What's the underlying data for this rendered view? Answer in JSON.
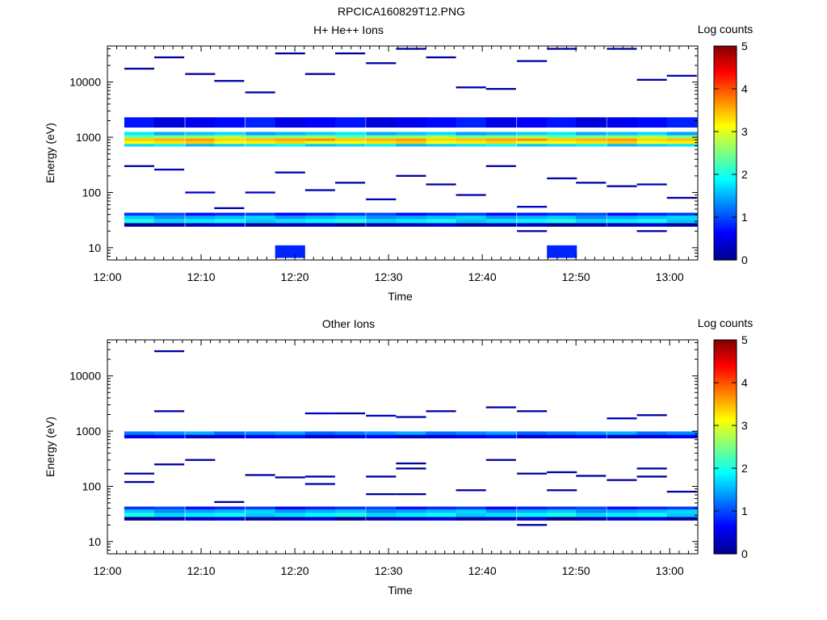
{
  "title": "RPCICA160829T12.PNG",
  "colormap": [
    "#00008f",
    "#0000ff",
    "#0080ff",
    "#00ffff",
    "#80ff80",
    "#ffff00",
    "#ff8000",
    "#ff0000",
    "#800000"
  ],
  "chart_data": [
    {
      "type": "heatmap",
      "title": "H+ He++ Ions",
      "xlabel": "Time",
      "ylabel": "Energy (eV)",
      "x_range": [
        "12:00",
        "13:03"
      ],
      "y_range": [
        6,
        45000
      ],
      "y_scale": "log",
      "x_ticks": [
        "12:00",
        "12:10",
        "12:20",
        "12:30",
        "12:40",
        "12:50",
        "13:00"
      ],
      "y_ticks": [
        "10",
        "100",
        "1000",
        "10000"
      ],
      "colorbar": {
        "label": "Log counts",
        "range": [
          0,
          5
        ],
        "ticks": [
          "0",
          "1",
          "2",
          "3",
          "4",
          "5"
        ]
      },
      "time_bins_start_min": [
        1.8,
        5.0,
        8.3,
        11.4,
        14.7,
        17.9,
        21.1,
        24.3,
        27.6,
        30.8,
        34.0,
        37.2,
        40.4,
        43.7,
        46.9,
        50.0,
        53.3,
        56.5,
        59.7
      ],
      "bands": [
        {
          "e_lo": 24,
          "e_hi": 28,
          "log_counts": 0.2
        },
        {
          "e_lo": 28,
          "e_hi": 33,
          "log_counts": 1.8
        },
        {
          "e_lo": 33,
          "e_hi": 38,
          "log_counts": 1.5
        },
        {
          "e_lo": 38,
          "e_hi": 43,
          "log_counts": 0.8
        },
        {
          "e_lo": 680,
          "e_hi": 760,
          "log_counts": 1.7
        },
        {
          "e_lo": 760,
          "e_hi": 860,
          "log_counts": 3.2
        },
        {
          "e_lo": 860,
          "e_hi": 960,
          "log_counts": 3.5
        },
        {
          "e_lo": 960,
          "e_hi": 1080,
          "log_counts": 2.6
        },
        {
          "e_lo": 1080,
          "e_hi": 1250,
          "log_counts": 1.6
        },
        {
          "e_lo": 1500,
          "e_hi": 2300,
          "log_counts": 0.6
        }
      ],
      "sparse_cells": [
        {
          "t": 1.8,
          "e": 17500,
          "v": 0.1
        },
        {
          "t": 5.0,
          "e": 28000,
          "v": 0.1
        },
        {
          "t": 8.3,
          "e": 14000,
          "v": 0.1
        },
        {
          "t": 11.4,
          "e": 10500,
          "v": 0.1
        },
        {
          "t": 14.7,
          "e": 6500,
          "v": 0.1
        },
        {
          "t": 17.9,
          "e": 33000,
          "v": 0.1
        },
        {
          "t": 21.1,
          "e": 14000,
          "v": 0.1
        },
        {
          "t": 24.3,
          "e": 33000,
          "v": 0.1
        },
        {
          "t": 27.6,
          "e": 22000,
          "v": 0.1
        },
        {
          "t": 30.8,
          "e": 40000,
          "v": 0.1
        },
        {
          "t": 34.0,
          "e": 28000,
          "v": 0.1
        },
        {
          "t": 37.2,
          "e": 8000,
          "v": 0.2
        },
        {
          "t": 40.4,
          "e": 7500,
          "v": 0.1
        },
        {
          "t": 43.7,
          "e": 24000,
          "v": 0.1
        },
        {
          "t": 46.9,
          "e": 40000,
          "v": 0.1
        },
        {
          "t": 53.3,
          "e": 40000,
          "v": 0.1
        },
        {
          "t": 56.5,
          "e": 11000,
          "v": 0.1
        },
        {
          "t": 59.7,
          "e": 13000,
          "v": 0.2
        },
        {
          "t": 1.8,
          "e": 300,
          "v": 0.1
        },
        {
          "t": 5.0,
          "e": 260,
          "v": 0.3
        },
        {
          "t": 8.3,
          "e": 100,
          "v": 0.3
        },
        {
          "t": 11.4,
          "e": 52,
          "v": 0.2
        },
        {
          "t": 14.7,
          "e": 100,
          "v": 0.3
        },
        {
          "t": 17.9,
          "e": 230,
          "v": 0.1
        },
        {
          "t": 21.1,
          "e": 110,
          "v": 0.2
        },
        {
          "t": 24.3,
          "e": 150,
          "v": 0.1
        },
        {
          "t": 27.6,
          "e": 75,
          "v": 0.2
        },
        {
          "t": 30.8,
          "e": 200,
          "v": 0.1
        },
        {
          "t": 34.0,
          "e": 140,
          "v": 0.1
        },
        {
          "t": 37.2,
          "e": 90,
          "v": 0.2
        },
        {
          "t": 40.4,
          "e": 300,
          "v": 0.1
        },
        {
          "t": 43.7,
          "e": 55,
          "v": 0.3
        },
        {
          "t": 46.9,
          "e": 180,
          "v": 0.1
        },
        {
          "t": 50.0,
          "e": 150,
          "v": 0.1
        },
        {
          "t": 53.3,
          "e": 130,
          "v": 0.1
        },
        {
          "t": 56.5,
          "e": 140,
          "v": 0.2
        },
        {
          "t": 59.7,
          "e": 80,
          "v": 0.1
        },
        {
          "t": 17.9,
          "e": 8.5,
          "v": 0.8
        },
        {
          "t": 46.9,
          "e": 8.5,
          "v": 0.8
        },
        {
          "t": 43.7,
          "e": 20,
          "v": 0.1
        },
        {
          "t": 56.5,
          "e": 20,
          "v": 0.1
        }
      ]
    },
    {
      "type": "heatmap",
      "title": "Other Ions",
      "xlabel": "Time",
      "ylabel": "Energy (eV)",
      "x_range": [
        "12:00",
        "13:03"
      ],
      "y_range": [
        6,
        45000
      ],
      "y_scale": "log",
      "x_ticks": [
        "12:00",
        "12:10",
        "12:20",
        "12:30",
        "12:40",
        "12:50",
        "13:00"
      ],
      "y_ticks": [
        "10",
        "100",
        "1000",
        "10000"
      ],
      "colorbar": {
        "label": "Log counts",
        "range": [
          0,
          5
        ],
        "ticks": [
          "0",
          "1",
          "2",
          "3",
          "4",
          "5"
        ]
      },
      "time_bins_start_min": [
        1.8,
        5.0,
        8.3,
        11.4,
        14.7,
        17.9,
        21.1,
        24.3,
        27.6,
        30.8,
        34.0,
        37.2,
        40.4,
        43.7,
        46.9,
        50.0,
        53.3,
        56.5,
        59.7
      ],
      "bands": [
        {
          "e_lo": 24,
          "e_hi": 28,
          "log_counts": 0.2
        },
        {
          "e_lo": 28,
          "e_hi": 33,
          "log_counts": 1.8
        },
        {
          "e_lo": 33,
          "e_hi": 38,
          "log_counts": 1.5
        },
        {
          "e_lo": 38,
          "e_hi": 43,
          "log_counts": 0.8
        },
        {
          "e_lo": 740,
          "e_hi": 860,
          "log_counts": 0.5
        },
        {
          "e_lo": 860,
          "e_hi": 990,
          "log_counts": 1.3
        }
      ],
      "sparse_cells": [
        {
          "t": 5.0,
          "e": 28000,
          "v": 0.1
        },
        {
          "t": 5.0,
          "e": 2300,
          "v": 0.1
        },
        {
          "t": 21.1,
          "e": 2100,
          "v": 0.3
        },
        {
          "t": 24.3,
          "e": 2100,
          "v": 0.1
        },
        {
          "t": 27.6,
          "e": 1900,
          "v": 0.4
        },
        {
          "t": 30.8,
          "e": 1800,
          "v": 0.1
        },
        {
          "t": 34.0,
          "e": 2300,
          "v": 0.1
        },
        {
          "t": 40.4,
          "e": 2700,
          "v": 0.1
        },
        {
          "t": 43.7,
          "e": 2300,
          "v": 0.1
        },
        {
          "t": 53.3,
          "e": 1700,
          "v": 0.3
        },
        {
          "t": 56.5,
          "e": 1950,
          "v": 0.1
        },
        {
          "t": 1.8,
          "e": 170,
          "v": 0.1
        },
        {
          "t": 1.8,
          "e": 120,
          "v": 0.1
        },
        {
          "t": 5.0,
          "e": 250,
          "v": 0.1
        },
        {
          "t": 8.3,
          "e": 300,
          "v": 0.1
        },
        {
          "t": 11.4,
          "e": 52,
          "v": 0.1
        },
        {
          "t": 14.7,
          "e": 160,
          "v": 0.1
        },
        {
          "t": 17.9,
          "e": 145,
          "v": 0.1
        },
        {
          "t": 21.1,
          "e": 150,
          "v": 0.1
        },
        {
          "t": 21.1,
          "e": 110,
          "v": 0.2
        },
        {
          "t": 27.6,
          "e": 150,
          "v": 0.1
        },
        {
          "t": 27.6,
          "e": 72,
          "v": 0.1
        },
        {
          "t": 30.8,
          "e": 260,
          "v": 0.1
        },
        {
          "t": 30.8,
          "e": 210,
          "v": 0.1
        },
        {
          "t": 30.8,
          "e": 72,
          "v": 0.1
        },
        {
          "t": 37.2,
          "e": 85,
          "v": 0.1
        },
        {
          "t": 40.4,
          "e": 300,
          "v": 0.1
        },
        {
          "t": 43.7,
          "e": 170,
          "v": 0.1
        },
        {
          "t": 46.9,
          "e": 180,
          "v": 0.1
        },
        {
          "t": 46.9,
          "e": 85,
          "v": 0.1
        },
        {
          "t": 50.0,
          "e": 155,
          "v": 0.1
        },
        {
          "t": 53.3,
          "e": 130,
          "v": 0.1
        },
        {
          "t": 56.5,
          "e": 210,
          "v": 0.1
        },
        {
          "t": 56.5,
          "e": 150,
          "v": 0.1
        },
        {
          "t": 59.7,
          "e": 80,
          "v": 0.1
        },
        {
          "t": 43.7,
          "e": 20,
          "v": 0.1
        }
      ]
    }
  ]
}
